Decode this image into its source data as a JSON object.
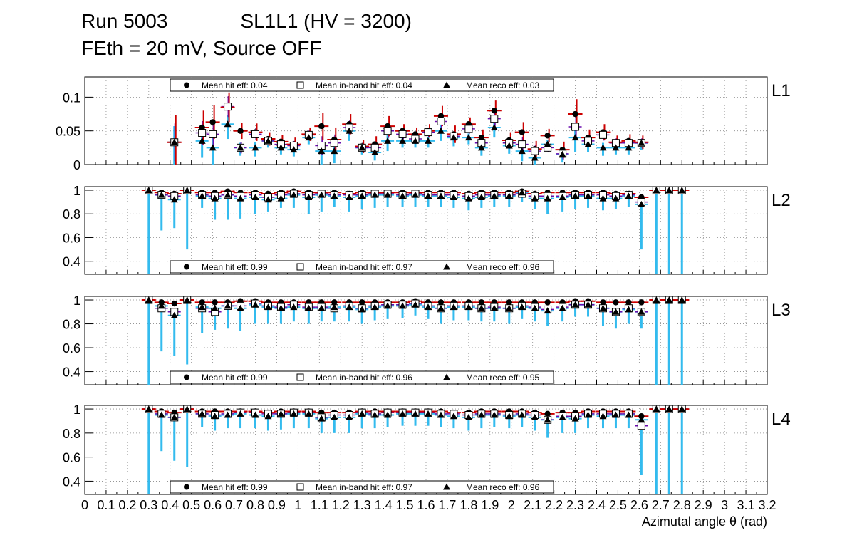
{
  "header": {
    "run": "Run 5003",
    "chamber": "SL1L1 (HV = 3200)",
    "conditions": "FEth = 20 mV, Source OFF"
  },
  "colors": {
    "hit_err": "#cc0000",
    "inband_err": "#6a0dad",
    "reco_err": "#33bbee",
    "grid": "#888888"
  },
  "chart_data": [
    {
      "type": "scatter",
      "label": "L1",
      "ylim": [
        0,
        0.13
      ],
      "yticks": [
        {
          "v": 0,
          "t": "0"
        },
        {
          "v": 0.05,
          "t": "0.05"
        },
        {
          "v": 0.1,
          "t": "0.1"
        }
      ],
      "legend": {
        "hit": "Mean hit  eff: 0.04",
        "inband": "Mean in-band hit eff: 0.04",
        "reco": "Mean reco eff: 0.03"
      },
      "legend_position": "top",
      "x": [
        0.42,
        0.55,
        0.6,
        0.67,
        0.73,
        0.8,
        0.86,
        0.92,
        0.98,
        1.05,
        1.11,
        1.17,
        1.24,
        1.3,
        1.36,
        1.42,
        1.49,
        1.55,
        1.61,
        1.67,
        1.73,
        1.8,
        1.86,
        1.92,
        1.99,
        2.05,
        2.11,
        2.17,
        2.24,
        2.3,
        2.36,
        2.43,
        2.49,
        2.55,
        2.61
      ],
      "hit": [
        0.033,
        0.055,
        0.063,
        0.085,
        0.05,
        0.048,
        0.038,
        0.034,
        0.03,
        0.045,
        0.057,
        0.037,
        0.06,
        0.027,
        0.03,
        0.057,
        0.05,
        0.045,
        0.05,
        0.072,
        0.045,
        0.06,
        0.04,
        0.08,
        0.036,
        0.048,
        0.023,
        0.043,
        0.022,
        0.075,
        0.04,
        0.048,
        0.033,
        0.035,
        0.033
      ],
      "inband": [
        0.033,
        0.047,
        0.045,
        0.086,
        0.025,
        0.045,
        0.035,
        0.03,
        0.028,
        0.044,
        0.028,
        0.032,
        0.055,
        0.025,
        0.025,
        0.05,
        0.045,
        0.038,
        0.048,
        0.064,
        0.042,
        0.053,
        0.032,
        0.068,
        0.032,
        0.03,
        0.02,
        0.025,
        0.016,
        0.056,
        0.035,
        0.044,
        0.032,
        0.032,
        0.032
      ],
      "reco": [
        0.033,
        0.035,
        0.025,
        0.06,
        0.025,
        0.025,
        0.035,
        0.025,
        0.022,
        0.04,
        0.02,
        0.02,
        0.05,
        0.025,
        0.018,
        0.035,
        0.035,
        0.035,
        0.035,
        0.05,
        0.04,
        0.04,
        0.025,
        0.055,
        0.028,
        0.02,
        0.01,
        0.03,
        0.015,
        0.04,
        0.03,
        0.025,
        0.025,
        0.025,
        0.032
      ],
      "err": [
        0.04,
        0.025,
        0.025,
        0.022,
        0.012,
        0.013,
        0.01,
        0.01,
        0.01,
        0.01,
        0.02,
        0.018,
        0.015,
        0.01,
        0.012,
        0.015,
        0.01,
        0.01,
        0.01,
        0.015,
        0.013,
        0.01,
        0.012,
        0.015,
        0.012,
        0.015,
        0.012,
        0.01,
        0.012,
        0.022,
        0.012,
        0.012,
        0.01,
        0.01,
        0.01
      ]
    },
    {
      "type": "scatter",
      "label": "L2",
      "ylim": [
        0.29,
        1.03
      ],
      "yticks": [
        {
          "v": 0.4,
          "t": "0.4"
        },
        {
          "v": 0.6,
          "t": "0.6"
        },
        {
          "v": 0.8,
          "t": "0.8"
        },
        {
          "v": 1,
          "t": "1"
        }
      ],
      "legend": {
        "hit": "Mean hit  eff: 0.99",
        "inband": "Mean in-band hit eff: 0.97",
        "reco": "Mean reco eff: 0.96"
      },
      "legend_position": "bottom",
      "x": [
        0.3,
        0.36,
        0.42,
        0.48,
        0.55,
        0.61,
        0.67,
        0.73,
        0.8,
        0.86,
        0.92,
        0.98,
        1.05,
        1.11,
        1.17,
        1.24,
        1.3,
        1.36,
        1.42,
        1.49,
        1.55,
        1.61,
        1.67,
        1.73,
        1.8,
        1.86,
        1.92,
        1.99,
        2.05,
        2.11,
        2.17,
        2.24,
        2.3,
        2.36,
        2.43,
        2.49,
        2.55,
        2.61,
        2.68,
        2.74,
        2.8
      ],
      "hit": [
        1.0,
        0.98,
        0.97,
        1.0,
        0.98,
        0.98,
        0.99,
        0.98,
        0.98,
        0.97,
        0.98,
        0.99,
        0.98,
        0.98,
        0.98,
        0.97,
        0.98,
        0.98,
        0.98,
        0.98,
        0.98,
        0.98,
        0.98,
        0.98,
        0.97,
        0.98,
        0.98,
        0.98,
        0.99,
        0.97,
        0.98,
        0.98,
        0.98,
        0.98,
        0.98,
        0.97,
        0.97,
        0.94,
        1.0,
        1.0,
        1.0
      ],
      "inband": [
        1.0,
        0.96,
        0.95,
        1.0,
        0.96,
        0.95,
        0.96,
        0.95,
        0.96,
        0.94,
        0.96,
        0.97,
        0.96,
        0.97,
        0.96,
        0.96,
        0.96,
        0.97,
        0.97,
        0.96,
        0.97,
        0.96,
        0.96,
        0.96,
        0.95,
        0.96,
        0.96,
        0.96,
        0.97,
        0.95,
        0.95,
        0.95,
        0.96,
        0.96,
        0.96,
        0.95,
        0.96,
        0.9,
        1.0,
        1.0,
        1.0
      ],
      "reco": [
        1.0,
        0.96,
        0.92,
        1.0,
        0.95,
        0.93,
        0.96,
        0.93,
        0.94,
        0.92,
        0.93,
        0.96,
        0.94,
        0.96,
        0.95,
        0.94,
        0.95,
        0.96,
        0.96,
        0.95,
        0.96,
        0.95,
        0.95,
        0.94,
        0.93,
        0.94,
        0.95,
        0.95,
        0.98,
        0.93,
        0.93,
        0.94,
        0.95,
        0.95,
        0.93,
        0.93,
        0.95,
        0.88,
        1.0,
        1.0,
        1.0
      ],
      "lo": [
        0.29,
        0.66,
        0.68,
        0.5,
        0.85,
        0.75,
        0.75,
        0.76,
        0.8,
        0.82,
        0.85,
        0.85,
        0.8,
        0.82,
        0.86,
        0.82,
        0.84,
        0.85,
        0.86,
        0.86,
        0.86,
        0.86,
        0.86,
        0.85,
        0.83,
        0.85,
        0.86,
        0.86,
        0.9,
        0.84,
        0.8,
        0.82,
        0.84,
        0.85,
        0.83,
        0.84,
        0.86,
        0.5,
        0.29,
        0.29,
        0.29
      ]
    },
    {
      "type": "scatter",
      "label": "L3",
      "ylim": [
        0.29,
        1.03
      ],
      "yticks": [
        {
          "v": 0.4,
          "t": "0.4"
        },
        {
          "v": 0.6,
          "t": "0.6"
        },
        {
          "v": 0.8,
          "t": "0.8"
        },
        {
          "v": 1,
          "t": "1"
        }
      ],
      "legend": {
        "hit": "Mean hit  eff: 0.99",
        "inband": "Mean in-band hit eff: 0.96",
        "reco": "Mean reco eff: 0.95"
      },
      "legend_position": "bottom",
      "x": [
        0.3,
        0.36,
        0.42,
        0.48,
        0.55,
        0.61,
        0.67,
        0.73,
        0.8,
        0.86,
        0.92,
        0.98,
        1.05,
        1.11,
        1.17,
        1.24,
        1.3,
        1.36,
        1.42,
        1.49,
        1.55,
        1.61,
        1.67,
        1.73,
        1.8,
        1.86,
        1.92,
        1.99,
        2.05,
        2.11,
        2.17,
        2.24,
        2.3,
        2.36,
        2.43,
        2.49,
        2.55,
        2.61,
        2.68,
        2.74,
        2.8
      ],
      "hit": [
        1.0,
        0.98,
        0.97,
        1.0,
        0.98,
        0.98,
        0.98,
        0.99,
        0.99,
        0.98,
        0.98,
        0.98,
        0.98,
        0.98,
        0.98,
        0.98,
        0.98,
        0.98,
        0.98,
        0.98,
        0.99,
        0.98,
        0.98,
        0.98,
        0.98,
        0.98,
        0.98,
        0.98,
        0.98,
        0.98,
        0.98,
        0.98,
        0.99,
        0.99,
        0.98,
        0.98,
        0.98,
        0.98,
        1.0,
        1.0,
        1.0
      ],
      "inband": [
        1.0,
        0.93,
        0.9,
        1.0,
        0.93,
        0.9,
        0.95,
        0.95,
        0.97,
        0.95,
        0.94,
        0.96,
        0.94,
        0.94,
        0.93,
        0.95,
        0.93,
        0.95,
        0.96,
        0.96,
        0.97,
        0.95,
        0.93,
        0.95,
        0.95,
        0.93,
        0.94,
        0.93,
        0.95,
        0.94,
        0.92,
        0.94,
        0.96,
        0.96,
        0.93,
        0.9,
        0.93,
        0.9,
        1.0,
        1.0,
        1.0
      ],
      "reco": [
        1.0,
        0.95,
        0.87,
        1.0,
        0.94,
        0.93,
        0.95,
        0.93,
        0.96,
        0.94,
        0.93,
        0.94,
        0.93,
        0.93,
        0.94,
        0.94,
        0.92,
        0.94,
        0.95,
        0.95,
        0.96,
        0.94,
        0.93,
        0.94,
        0.94,
        0.93,
        0.93,
        0.93,
        0.94,
        0.93,
        0.91,
        0.93,
        0.96,
        0.96,
        0.93,
        0.9,
        0.92,
        0.9,
        1.0,
        1.0,
        1.0
      ],
      "lo": [
        0.29,
        0.57,
        0.53,
        0.46,
        0.72,
        0.75,
        0.76,
        0.74,
        0.8,
        0.8,
        0.8,
        0.82,
        0.8,
        0.82,
        0.82,
        0.82,
        0.8,
        0.83,
        0.84,
        0.85,
        0.87,
        0.84,
        0.8,
        0.83,
        0.83,
        0.82,
        0.82,
        0.8,
        0.84,
        0.82,
        0.78,
        0.82,
        0.86,
        0.86,
        0.78,
        0.76,
        0.8,
        0.76,
        0.29,
        0.29,
        0.29
      ]
    },
    {
      "type": "scatter",
      "label": "L4",
      "ylim": [
        0.29,
        1.03
      ],
      "yticks": [
        {
          "v": 0.4,
          "t": "0.4"
        },
        {
          "v": 0.6,
          "t": "0.6"
        },
        {
          "v": 0.8,
          "t": "0.8"
        },
        {
          "v": 1,
          "t": "1"
        }
      ],
      "legend": {
        "hit": "Mean hit  eff: 0.99",
        "inband": "Mean in-band hit eff: 0.97",
        "reco": "Mean reco eff: 0.96"
      },
      "legend_position": "bottom",
      "x": [
        0.3,
        0.36,
        0.42,
        0.48,
        0.55,
        0.61,
        0.67,
        0.73,
        0.8,
        0.86,
        0.92,
        0.98,
        1.05,
        1.11,
        1.17,
        1.24,
        1.3,
        1.36,
        1.42,
        1.49,
        1.55,
        1.61,
        1.67,
        1.73,
        1.8,
        1.86,
        1.92,
        1.99,
        2.05,
        2.11,
        2.17,
        2.24,
        2.3,
        2.36,
        2.43,
        2.49,
        2.55,
        2.61,
        2.68,
        2.74,
        2.8
      ],
      "hit": [
        1.0,
        0.98,
        0.97,
        1.0,
        0.98,
        0.98,
        0.98,
        0.98,
        0.98,
        0.97,
        0.98,
        0.98,
        0.98,
        0.97,
        0.97,
        0.97,
        0.98,
        0.98,
        0.98,
        0.98,
        0.98,
        0.98,
        0.98,
        0.97,
        0.97,
        0.98,
        0.98,
        0.98,
        0.98,
        0.97,
        0.96,
        0.97,
        0.97,
        0.98,
        0.98,
        0.98,
        0.98,
        0.94,
        1.0,
        1.0,
        1.0
      ],
      "inband": [
        1.0,
        0.96,
        0.93,
        1.0,
        0.96,
        0.95,
        0.96,
        0.97,
        0.97,
        0.96,
        0.96,
        0.97,
        0.97,
        0.93,
        0.95,
        0.95,
        0.97,
        0.96,
        0.97,
        0.97,
        0.97,
        0.97,
        0.96,
        0.96,
        0.95,
        0.96,
        0.96,
        0.95,
        0.96,
        0.95,
        0.91,
        0.94,
        0.94,
        0.96,
        0.96,
        0.96,
        0.96,
        0.86,
        1.0,
        1.0,
        1.0
      ],
      "reco": [
        1.0,
        0.95,
        0.93,
        1.0,
        0.96,
        0.94,
        0.95,
        0.96,
        0.95,
        0.94,
        0.96,
        0.96,
        0.96,
        0.92,
        0.93,
        0.93,
        0.96,
        0.95,
        0.95,
        0.96,
        0.96,
        0.96,
        0.95,
        0.94,
        0.93,
        0.95,
        0.95,
        0.94,
        0.95,
        0.93,
        0.91,
        0.93,
        0.92,
        0.95,
        0.94,
        0.95,
        0.95,
        0.91,
        1.0,
        1.0,
        1.0
      ],
      "lo": [
        0.29,
        0.65,
        0.57,
        0.52,
        0.85,
        0.82,
        0.84,
        0.84,
        0.84,
        0.82,
        0.83,
        0.84,
        0.84,
        0.8,
        0.8,
        0.8,
        0.84,
        0.84,
        0.85,
        0.86,
        0.86,
        0.86,
        0.85,
        0.84,
        0.82,
        0.84,
        0.85,
        0.84,
        0.85,
        0.82,
        0.76,
        0.8,
        0.8,
        0.84,
        0.84,
        0.84,
        0.84,
        0.45,
        0.29,
        0.29,
        0.29
      ]
    }
  ],
  "x_axis": {
    "label": "Azimutal angle θ (rad)",
    "xlim": [
      0,
      3.2
    ],
    "ticks": [
      {
        "v": 0,
        "t": "0"
      },
      {
        "v": 0.1,
        "t": "0.1"
      },
      {
        "v": 0.2,
        "t": "0.2"
      },
      {
        "v": 0.3,
        "t": "0.3"
      },
      {
        "v": 0.4,
        "t": "0.4"
      },
      {
        "v": 0.5,
        "t": "0.5"
      },
      {
        "v": 0.6,
        "t": "0.6"
      },
      {
        "v": 0.7,
        "t": "0.7"
      },
      {
        "v": 0.8,
        "t": "0.8"
      },
      {
        "v": 0.9,
        "t": "0.9"
      },
      {
        "v": 1.0,
        "t": "1"
      },
      {
        "v": 1.1,
        "t": "1.1"
      },
      {
        "v": 1.2,
        "t": "1.2"
      },
      {
        "v": 1.3,
        "t": "1.3"
      },
      {
        "v": 1.4,
        "t": "1.4"
      },
      {
        "v": 1.5,
        "t": "1.5"
      },
      {
        "v": 1.6,
        "t": "1.6"
      },
      {
        "v": 1.7,
        "t": "1.7"
      },
      {
        "v": 1.8,
        "t": "1.8"
      },
      {
        "v": 1.9,
        "t": "1.9"
      },
      {
        "v": 2.0,
        "t": "2"
      },
      {
        "v": 2.1,
        "t": "2.1"
      },
      {
        "v": 2.2,
        "t": "2.2"
      },
      {
        "v": 2.3,
        "t": "2.3"
      },
      {
        "v": 2.4,
        "t": "2.4"
      },
      {
        "v": 2.5,
        "t": "2.5"
      },
      {
        "v": 2.6,
        "t": "2.6"
      },
      {
        "v": 2.7,
        "t": "2.7"
      },
      {
        "v": 2.8,
        "t": "2.8"
      },
      {
        "v": 2.9,
        "t": "2.9"
      },
      {
        "v": 3.0,
        "t": "3"
      },
      {
        "v": 3.1,
        "t": "3.1"
      },
      {
        "v": 3.2,
        "t": "3.2"
      }
    ]
  }
}
